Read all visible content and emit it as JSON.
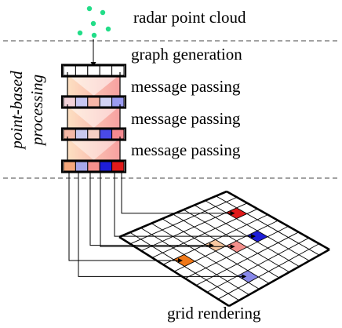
{
  "labels": {
    "radar_point_cloud": "radar point cloud",
    "graph_generation": "graph generation",
    "message_passing_1": "message passing",
    "message_passing_2": "message passing",
    "message_passing_3": "message passing",
    "point_based_line1": "point-based",
    "point_based_line2": "processing",
    "grid_rendering": "grid rendering"
  },
  "colors": {
    "point_cloud": "#22dd88",
    "feature_row_1": [
      "#ffffff",
      "#ffffff",
      "#ffffff",
      "#ffffff",
      "#ffffff"
    ],
    "feature_row_2": [
      "#f2d2d8",
      "#c7c7f2",
      "#f6b6a8",
      "#d3d3f5",
      "#9b9bf0"
    ],
    "feature_row_3": [
      "#f4b8a6",
      "#c9c9ef",
      "#f5cfc4",
      "#4a4ae8",
      "#f48a90"
    ],
    "feature_row_4": [
      "#f5a77c",
      "#a7a7ea",
      "#f4908c",
      "#1e1ed8",
      "#e01a1a"
    ],
    "gradient_light": "#fde0c2",
    "gradient_pink": "#f7a7a7",
    "cell_red": "#e01a1a",
    "cell_blue": "#1e1ed8",
    "cell_pink": "#f4908c",
    "cell_peach": "#f8c8a0",
    "cell_lavender": "#8888ea",
    "cell_orange": "#f07818"
  }
}
